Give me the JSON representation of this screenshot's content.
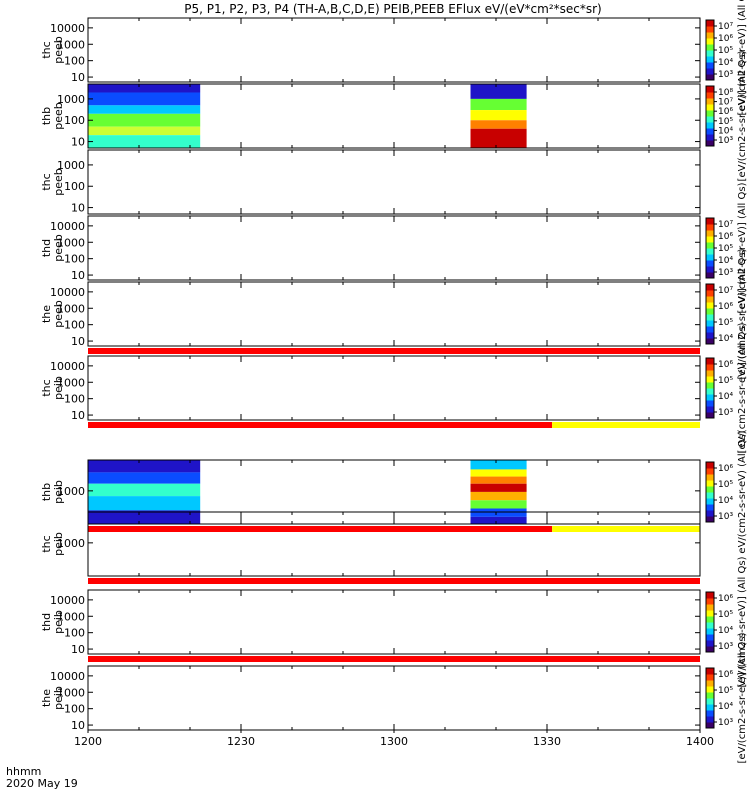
{
  "chart_data": {
    "type": "heatmap",
    "title": "P5, P1, P2, P3, P4 (TH-A,B,C,D,E) PEIB,PEEB EFlux eV/(eV*cm²*sec*sr)",
    "footer": {
      "time_label": "hhmm",
      "date_label": "2020 May 19"
    },
    "x_ticks": [
      "1200",
      "1230",
      "1300",
      "1330",
      "1400"
    ],
    "x_range": [
      "12:00",
      "14:00"
    ],
    "colorbar_colors": [
      "#3a0066",
      "#1f14c8",
      "#0a4cff",
      "#00c8ff",
      "#33ffcc",
      "#66ff33",
      "#ffff00",
      "#ffb000",
      "#ff4000",
      "#c80000"
    ],
    "panels": [
      {
        "label": [
          "thc",
          "peeb"
        ],
        "yticks": [
          "10000",
          "1000",
          "100",
          "10"
        ],
        "ylim": [
          5,
          40000
        ],
        "yscale": "log",
        "blocks": [],
        "colorbar": {
          "ticks": [
            "10⁷",
            "10⁶",
            "10⁵",
            "10⁴",
            "10³"
          ],
          "title": "[eV/(cm2-s-sr-eV)] (All Qs)"
        },
        "bar": null
      },
      {
        "label": [
          "thb",
          "peeb"
        ],
        "yticks": [
          "1000",
          "100",
          "10"
        ],
        "ylim": [
          5,
          5000
        ],
        "yscale": "log",
        "blocks": [
          {
            "t_start": "12:00",
            "t_end": "12:22",
            "bands": [
              {
                "y_from": 2000,
                "y_to": 5000,
                "color": "#1f14c8"
              },
              {
                "y_from": 500,
                "y_to": 2000,
                "color": "#0a4cff"
              },
              {
                "y_from": 200,
                "y_to": 500,
                "color": "#00c8ff"
              },
              {
                "y_from": 50,
                "y_to": 200,
                "color": "#66ff33"
              },
              {
                "y_from": 20,
                "y_to": 50,
                "color": "#ccff33"
              },
              {
                "y_from": 5,
                "y_to": 20,
                "color": "#33ffcc"
              }
            ]
          },
          {
            "t_start": "13:15",
            "t_end": "13:26",
            "bands": [
              {
                "y_from": 1000,
                "y_to": 5000,
                "color": "#1f14c8"
              },
              {
                "y_from": 300,
                "y_to": 1000,
                "color": "#66ff33"
              },
              {
                "y_from": 100,
                "y_to": 300,
                "color": "#ffff00"
              },
              {
                "y_from": 40,
                "y_to": 100,
                "color": "#ff8000"
              },
              {
                "y_from": 5,
                "y_to": 40,
                "color": "#c80000"
              }
            ]
          }
        ],
        "colorbar": {
          "ticks": [
            "10⁸",
            "10⁷",
            "10⁶",
            "10⁵",
            "10⁴",
            "10³"
          ],
          "title": "[eV/(cm2-s-sr-eV)] (All Qs)"
        },
        "bar": null
      },
      {
        "label": [
          "thc",
          "peeb"
        ],
        "yticks": [
          "1000",
          "100",
          "10"
        ],
        "ylim": [
          5,
          5000
        ],
        "yscale": "log",
        "blocks": [],
        "colorbar": null,
        "bar": null
      },
      {
        "label": [
          "thd",
          "peeb"
        ],
        "yticks": [
          "10000",
          "1000",
          "100",
          "10"
        ],
        "ylim": [
          5,
          40000
        ],
        "yscale": "log",
        "blocks": [],
        "colorbar": {
          "ticks": [
            "10⁷",
            "10⁶",
            "10⁵",
            "10⁴",
            "10³"
          ],
          "title": "[eV/(cm2-s-sr-eV)] (All Qs)"
        },
        "bar": null
      },
      {
        "label": [
          "the",
          "peeb"
        ],
        "yticks": [
          "10000",
          "1000",
          "100",
          "10"
        ],
        "ylim": [
          5,
          40000
        ],
        "yscale": "log",
        "blocks": [],
        "colorbar": {
          "ticks": [
            "10⁷",
            "10⁶",
            "10⁵",
            "10⁴"
          ],
          "title": "[eV/(cm2-s-sr-eV)] (All Qs)"
        },
        "bar": {
          "segments": [
            {
              "t_start": "12:00",
              "t_end": "14:00",
              "color": "#ff0000"
            }
          ]
        }
      },
      {
        "label": [
          "thc",
          "peib"
        ],
        "yticks": [
          "10000",
          "1000",
          "100",
          "10"
        ],
        "ylim": [
          5,
          40000
        ],
        "yscale": "log",
        "blocks": [],
        "colorbar": {
          "ticks": [
            "10⁶",
            "10⁵",
            "10⁴",
            "10³"
          ],
          "title": "[eV/(cm2-s-sr-eV)] (All Qs)"
        },
        "bar": {
          "segments": [
            {
              "t_start": "12:00",
              "t_end": "13:31",
              "color": "#ff0000"
            },
            {
              "t_start": "13:31",
              "t_end": "14:00",
              "color": "#ffff00"
            }
          ]
        }
      },
      {
        "label": [
          "thb",
          "peib"
        ],
        "yticks": [
          "1000"
        ],
        "ylim": [
          40,
          20000
        ],
        "yscale": "log",
        "blocks": [
          {
            "t_start": "12:00",
            "t_end": "12:22",
            "bands": [
              {
                "y_from": 6000,
                "y_to": 20000,
                "color": "#1f14c8"
              },
              {
                "y_from": 2000,
                "y_to": 6000,
                "color": "#0a4cff"
              },
              {
                "y_from": 600,
                "y_to": 2000,
                "color": "#33ffcc"
              },
              {
                "y_from": 150,
                "y_to": 600,
                "color": "#00c8ff"
              },
              {
                "y_from": 40,
                "y_to": 150,
                "color": "#1f14c8"
              }
            ]
          },
          {
            "t_start": "13:15",
            "t_end": "13:26",
            "bands": [
              {
                "y_from": 8000,
                "y_to": 20000,
                "color": "#00c8ff"
              },
              {
                "y_from": 4000,
                "y_to": 8000,
                "color": "#ffff00"
              },
              {
                "y_from": 2000,
                "y_to": 4000,
                "color": "#ff8000"
              },
              {
                "y_from": 900,
                "y_to": 2000,
                "color": "#c80000"
              },
              {
                "y_from": 400,
                "y_to": 900,
                "color": "#ffb000"
              },
              {
                "y_from": 180,
                "y_to": 400,
                "color": "#66ff33"
              },
              {
                "y_from": 80,
                "y_to": 180,
                "color": "#0a4cff"
              },
              {
                "y_from": 40,
                "y_to": 80,
                "color": "#1f14c8"
              }
            ]
          }
        ],
        "colorbar": {
          "ticks": [
            "10⁶",
            "10⁵",
            "10⁴",
            "10³"
          ],
          "title": "eV/(cm2-s-sr-eV) (All Qs)"
        },
        "bar": {
          "segments": [
            {
              "t_start": "12:00",
              "t_end": "13:31",
              "color": "#ff0000"
            },
            {
              "t_start": "13:31",
              "t_end": "14:00",
              "color": "#ffff00"
            }
          ]
        }
      },
      {
        "label": [
          "thc",
          "peib"
        ],
        "yticks": [
          "1000"
        ],
        "ylim": [
          40,
          20000
        ],
        "yscale": "log",
        "blocks": [],
        "colorbar": null,
        "bar": {
          "segments": [
            {
              "t_start": "12:00",
              "t_end": "14:00",
              "color": "#ff0000"
            }
          ]
        }
      },
      {
        "label": [
          "thd",
          "peib"
        ],
        "yticks": [
          "10000",
          "1000",
          "100",
          "10"
        ],
        "ylim": [
          5,
          40000
        ],
        "yscale": "log",
        "blocks": [],
        "colorbar": {
          "ticks": [
            "10⁶",
            "10⁵",
            "10⁴",
            "10³"
          ],
          "title": "[eV/(cm2-s-sr-eV)] (All Qs)"
        },
        "bar": {
          "segments": [
            {
              "t_start": "12:00",
              "t_end": "14:00",
              "color": "#ff0000"
            }
          ]
        }
      },
      {
        "label": [
          "the",
          "peib"
        ],
        "yticks": [
          "10000",
          "1000",
          "100",
          "10"
        ],
        "ylim": [
          5,
          40000
        ],
        "yscale": "log",
        "blocks": [],
        "colorbar": {
          "ticks": [
            "10⁶",
            "10⁵",
            "10⁴",
            "10³"
          ],
          "title": "[eV/(cm2-s-sr-eV)] (All Qs)"
        },
        "bar": null
      }
    ]
  }
}
